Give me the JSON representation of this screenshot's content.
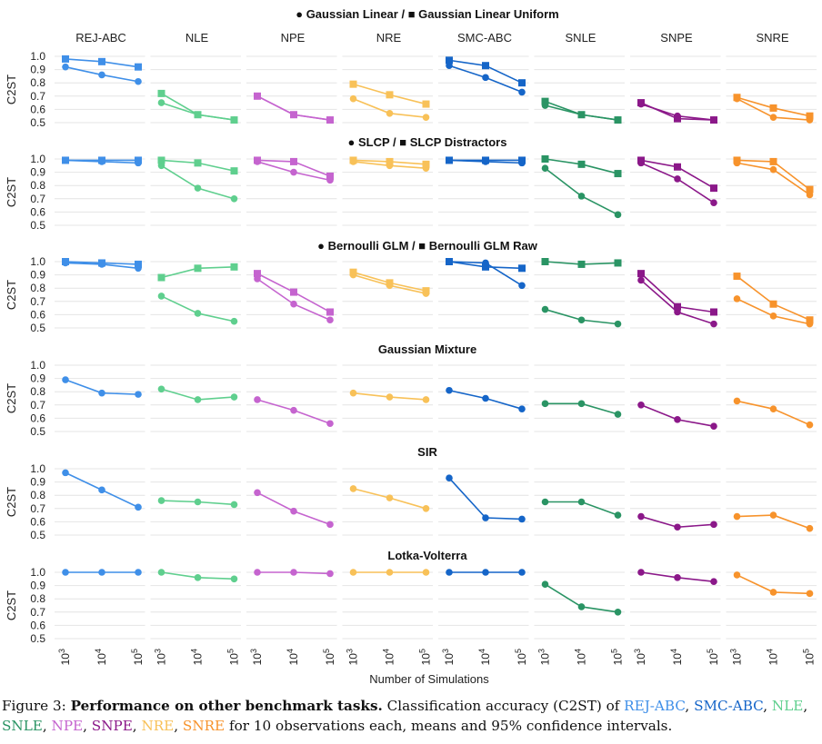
{
  "colors": {
    "REJ-ABC": "#3f8fe8",
    "NLE": "#5fcf8e",
    "NPE": "#c564cf",
    "NRE": "#f8c158",
    "SMC-ABC": "#1565c8",
    "SNLE": "#2a9464",
    "SNPE": "#8b1889",
    "SNRE": "#f7932c"
  },
  "caption": {
    "figure": "Figure 3:",
    "bold": "Performance on other benchmark tasks.",
    "text1": "Classification accuracy (C2ST) of",
    "methods": [
      "REJ-ABC",
      "SMC-ABC",
      "NLE",
      "SNLE",
      "NPE",
      "SNPE",
      "NRE",
      "SNRE"
    ],
    "text2": "for 10 observations each, means and 95% confidence intervals."
  },
  "chart_data": {
    "type": "line",
    "xlabel": "Number of Simulations",
    "ylabel": "C2ST",
    "x": [
      "10^3",
      "10^4",
      "10^5"
    ],
    "ylim": [
      0.5,
      1.0
    ],
    "yticks": [
      "1.0",
      "0.9",
      "0.8",
      "0.7",
      "0.6",
      "0.5"
    ],
    "methods": [
      "REJ-ABC",
      "NLE",
      "NPE",
      "NRE",
      "SMC-ABC",
      "SNLE",
      "SNPE",
      "SNRE"
    ],
    "rows": [
      {
        "title": "Gaussian Linear / Gaussian Linear Uniform",
        "marker1": "●",
        "marker2": "■",
        "circle": {
          "REJ-ABC": [
            0.92,
            0.86,
            0.81
          ],
          "NLE": [
            0.65,
            0.56,
            0.52
          ],
          "NPE": [
            0.7,
            0.56,
            0.52
          ],
          "NRE": [
            0.68,
            0.57,
            0.54
          ],
          "SMC-ABC": [
            0.93,
            0.84,
            0.73
          ],
          "SNLE": [
            0.63,
            0.56,
            0.52
          ],
          "SNPE": [
            0.64,
            0.55,
            0.52
          ],
          "SNRE": [
            0.68,
            0.54,
            0.52
          ]
        },
        "square": {
          "REJ-ABC": [
            0.98,
            0.96,
            0.92
          ],
          "NLE": [
            0.72,
            0.56,
            0.52
          ],
          "NPE": [
            0.7,
            0.56,
            0.52
          ],
          "NRE": [
            0.79,
            0.71,
            0.64
          ],
          "SMC-ABC": [
            0.97,
            0.93,
            0.8
          ],
          "SNLE": [
            0.66,
            0.56,
            0.52
          ],
          "SNPE": [
            0.65,
            0.53,
            0.52
          ],
          "SNRE": [
            0.69,
            0.61,
            0.55
          ]
        }
      },
      {
        "title": "SLCP / SLCP Distractors",
        "marker1": "●",
        "marker2": "■",
        "circle": {
          "REJ-ABC": [
            0.99,
            0.98,
            0.97
          ],
          "NLE": [
            0.95,
            0.78,
            0.7
          ],
          "NPE": [
            0.98,
            0.9,
            0.84
          ],
          "NRE": [
            0.98,
            0.95,
            0.93
          ],
          "SMC-ABC": [
            0.99,
            0.98,
            0.97
          ],
          "SNLE": [
            0.93,
            0.72,
            0.58
          ],
          "SNPE": [
            0.97,
            0.85,
            0.67
          ],
          "SNRE": [
            0.97,
            0.92,
            0.73
          ]
        },
        "square": {
          "REJ-ABC": [
            0.99,
            0.99,
            0.99
          ],
          "NLE": [
            0.99,
            0.97,
            0.91
          ],
          "NPE": [
            0.99,
            0.98,
            0.87
          ],
          "NRE": [
            0.99,
            0.98,
            0.96
          ],
          "SMC-ABC": [
            0.99,
            0.99,
            0.99
          ],
          "SNLE": [
            1.0,
            0.96,
            0.89
          ],
          "SNPE": [
            0.99,
            0.94,
            0.78
          ],
          "SNRE": [
            0.99,
            0.98,
            0.77
          ]
        }
      },
      {
        "title": "Bernoulli GLM / Bernoulli GLM Raw",
        "marker1": "●",
        "marker2": "■",
        "circle": {
          "REJ-ABC": [
            0.99,
            0.98,
            0.95
          ],
          "NLE": [
            0.74,
            0.61,
            0.55
          ],
          "NPE": [
            0.87,
            0.68,
            0.56
          ],
          "NRE": [
            0.9,
            0.82,
            0.76
          ],
          "SMC-ABC": [
            1.0,
            0.99,
            0.82
          ],
          "SNLE": [
            0.64,
            0.56,
            0.53
          ],
          "SNPE": [
            0.86,
            0.62,
            0.53
          ],
          "SNRE": [
            0.72,
            0.59,
            0.53
          ]
        },
        "square": {
          "REJ-ABC": [
            1.0,
            0.99,
            0.98
          ],
          "NLE": [
            0.88,
            0.95,
            0.96
          ],
          "NPE": [
            0.91,
            0.77,
            0.62
          ],
          "NRE": [
            0.92,
            0.84,
            0.78
          ],
          "SMC-ABC": [
            1.0,
            0.96,
            0.95
          ],
          "SNLE": [
            1.0,
            0.98,
            0.99
          ],
          "SNPE": [
            0.91,
            0.66,
            0.62
          ],
          "SNRE": [
            0.89,
            0.68,
            0.56
          ]
        }
      },
      {
        "title": "Gaussian Mixture",
        "circle": {
          "REJ-ABC": [
            0.89,
            0.79,
            0.78
          ],
          "NLE": [
            0.82,
            0.74,
            0.76
          ],
          "NPE": [
            0.74,
            0.66,
            0.56
          ],
          "NRE": [
            0.79,
            0.76,
            0.74
          ],
          "SMC-ABC": [
            0.81,
            0.75,
            0.67
          ],
          "SNLE": [
            0.71,
            0.71,
            0.63
          ],
          "SNPE": [
            0.7,
            0.59,
            0.54
          ],
          "SNRE": [
            0.73,
            0.67,
            0.55
          ]
        }
      },
      {
        "title": "SIR",
        "circle": {
          "REJ-ABC": [
            0.97,
            0.84,
            0.71
          ],
          "NLE": [
            0.76,
            0.75,
            0.73
          ],
          "NPE": [
            0.82,
            0.68,
            0.58
          ],
          "NRE": [
            0.85,
            0.78,
            0.7
          ],
          "SMC-ABC": [
            0.93,
            0.63,
            0.62
          ],
          "SNLE": [
            0.75,
            0.75,
            0.65
          ],
          "SNPE": [
            0.64,
            0.56,
            0.58
          ],
          "SNRE": [
            0.64,
            0.65,
            0.55
          ]
        }
      },
      {
        "title": "Lotka-Volterra",
        "circle": {
          "REJ-ABC": [
            1.0,
            1.0,
            1.0
          ],
          "NLE": [
            1.0,
            0.96,
            0.95
          ],
          "NPE": [
            1.0,
            1.0,
            0.99
          ],
          "NRE": [
            1.0,
            1.0,
            1.0
          ],
          "SMC-ABC": [
            1.0,
            1.0,
            1.0
          ],
          "SNLE": [
            0.91,
            0.74,
            0.7
          ],
          "SNPE": [
            1.0,
            0.96,
            0.93
          ],
          "SNRE": [
            0.98,
            0.85,
            0.84
          ]
        }
      }
    ]
  }
}
